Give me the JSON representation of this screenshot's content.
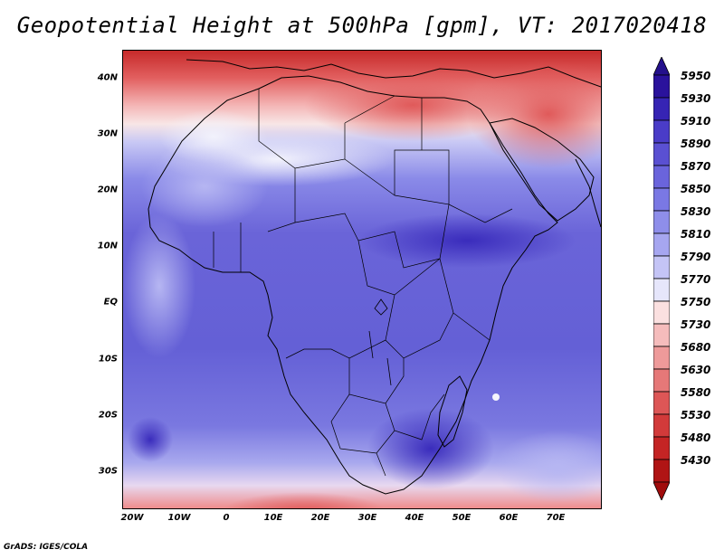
{
  "title": "Geopotential Height at 500hPa [gpm], VT: 2017020418",
  "credit": "GrADS: IGES/COLA",
  "lat_labels": [
    "40N",
    "30N",
    "20N",
    "10N",
    "EQ",
    "10S",
    "20S",
    "30S"
  ],
  "lon_labels": [
    "20W",
    "10W",
    "0",
    "10E",
    "20E",
    "30E",
    "40E",
    "50E",
    "60E",
    "70E"
  ],
  "colorbar": {
    "levels": [
      "5950",
      "5930",
      "5910",
      "5890",
      "5870",
      "5850",
      "5830",
      "5810",
      "5790",
      "5770",
      "5750",
      "5730",
      "5680",
      "5630",
      "5580",
      "5530",
      "5480",
      "5430"
    ],
    "colors": [
      "#2a129c",
      "#3624b4",
      "#4a3cc8",
      "#5a50d2",
      "#6a64dc",
      "#7a78e4",
      "#8e8eea",
      "#a6a6f0",
      "#c4c4f6",
      "#e6e6fb",
      "#fbe0e0",
      "#f5bcbc",
      "#ee9a9a",
      "#e67878",
      "#dd5656",
      "#d23a3a",
      "#c42424",
      "#b01414"
    ],
    "top_arrow_color": "#24108c",
    "bottom_arrow_color": "#a00c0c"
  },
  "chart_data": {
    "type": "heatmap",
    "title": "Geopotential Height at 500hPa [gpm], VT: 2017020418",
    "variable": "Geopotential Height",
    "units": "gpm",
    "pressure_level": "500hPa",
    "valid_time": "2017020418",
    "lon_range": [
      -22,
      80
    ],
    "lat_range": [
      -37,
      45
    ],
    "lat_ticks": [
      40,
      30,
      20,
      10,
      0,
      -10,
      -20,
      -30
    ],
    "lon_ticks": [
      -20,
      -10,
      0,
      10,
      20,
      30,
      40,
      50,
      60,
      70
    ],
    "contour_levels": [
      5430,
      5480,
      5530,
      5580,
      5630,
      5680,
      5730,
      5750,
      5770,
      5790,
      5810,
      5830,
      5850,
      5870,
      5890,
      5910,
      5930,
      5950
    ]
  }
}
